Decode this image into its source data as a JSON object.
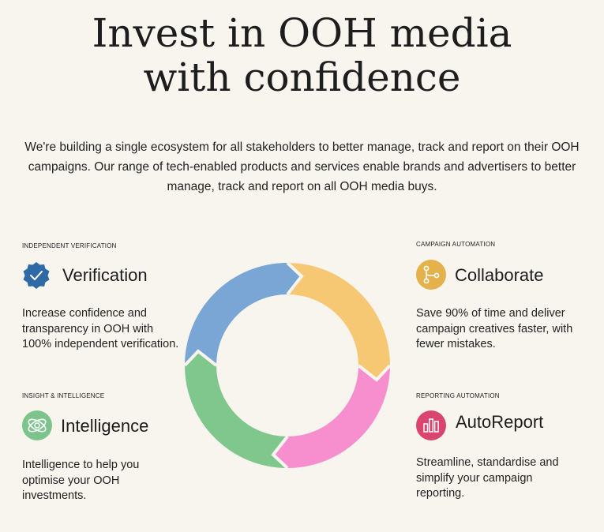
{
  "hero": {
    "title_line1": "Invest in OOH media",
    "title_line2": "with confidence",
    "subtitle": "We're building a single ecosystem for all stakeholders to better manage, track and report on their OOH campaigns. Our range of tech-enabled products and services enable brands and advertisers to better manage, track and report on all OOH media buys."
  },
  "features": {
    "verification": {
      "eyebrow": "INDEPENDENT VERIFICATION",
      "title": "Verification",
      "description": "Increase confidence and transparency in OOH with 100% independent verification.",
      "icon": "verified-badge-icon",
      "color": "#2f6aa6"
    },
    "collaborate": {
      "eyebrow": "CAMPAIGN AUTOMATION",
      "title": "Collaborate",
      "description": "Save 90% of time and deliver campaign creatives faster, with fewer mistakes.",
      "icon": "workflow-icon",
      "color": "#e4b14a"
    },
    "intelligence": {
      "eyebrow": "INSIGHT & INTELLIGENCE",
      "title": "Intelligence",
      "description": "Intelligence to help you optimise your OOH investments.",
      "icon": "orbit-icon",
      "color": "#7cc48b"
    },
    "autoreport": {
      "eyebrow": "REPORTING AUTOMATION",
      "title": "AutoReport",
      "description": "Streamline, standardise and simplify your campaign reporting.",
      "icon": "bar-chart-icon",
      "color": "#d9456e"
    }
  },
  "cycle": {
    "segment_colors": [
      "#79a6d4",
      "#f6c873",
      "#f78fcf",
      "#7fc78c"
    ]
  }
}
